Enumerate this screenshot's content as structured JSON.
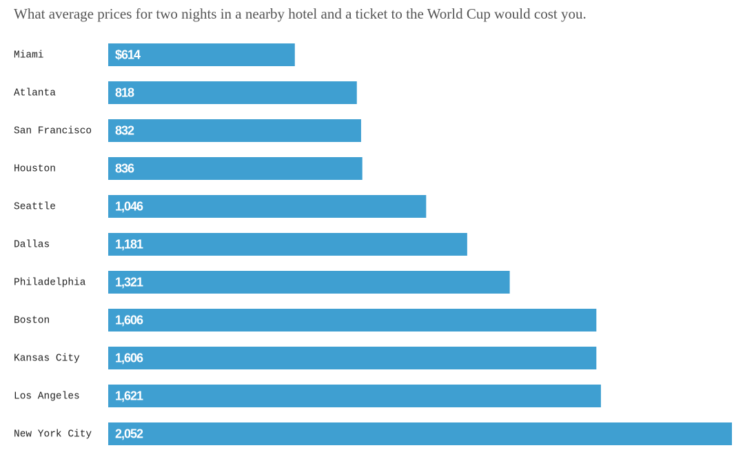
{
  "chart_data": {
    "type": "bar",
    "orientation": "horizontal",
    "title": "What average prices for two nights in a nearby hotel and a ticket to the World Cup would cost you.",
    "categories": [
      "Miami",
      "Atlanta",
      "San Francisco",
      "Houston",
      "Seattle",
      "Dallas",
      "Philadelphia",
      "Boston",
      "Kansas City",
      "Los Angeles",
      "New York City"
    ],
    "values": [
      614,
      818,
      832,
      836,
      1046,
      1181,
      1321,
      1606,
      1606,
      1621,
      2052
    ],
    "value_labels": [
      "$614",
      "818",
      "832",
      "836",
      "1,046",
      "1,181",
      "1,321",
      "1,606",
      "1,606",
      "1,621",
      "2,052"
    ],
    "color": "#3f9fd1"
  }
}
